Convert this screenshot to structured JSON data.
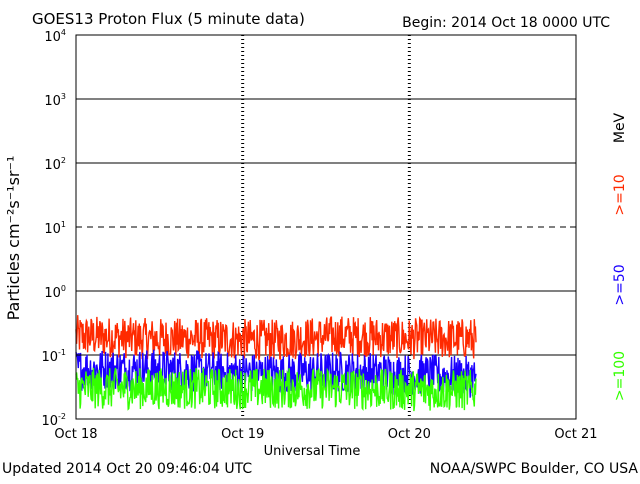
{
  "chart_data": {
    "type": "line",
    "title": "GOES13 Proton Flux (5 minute data)",
    "begin_label": "Begin: 2014 Oct 18 0000 UTC",
    "xlabel": "Universal Time",
    "ylabel": "Particles cm⁻²s⁻¹sr⁻¹",
    "y_scale": "log",
    "ylim": [
      0.01,
      10000
    ],
    "y_ticks": [
      {
        "value": 0.01,
        "base": "10",
        "exp": "-2"
      },
      {
        "value": 0.1,
        "base": "10",
        "exp": "-1"
      },
      {
        "value": 1,
        "base": "10",
        "exp": "0"
      },
      {
        "value": 10,
        "base": "10",
        "exp": "1"
      },
      {
        "value": 100,
        "base": "10",
        "exp": "2"
      },
      {
        "value": 1000,
        "base": "10",
        "exp": "3"
      },
      {
        "value": 10000,
        "base": "10",
        "exp": "4"
      }
    ],
    "x_ticks": [
      "Oct 18",
      "Oct 19",
      "Oct 20",
      "Oct 21"
    ],
    "xlim_days": [
      0,
      3
    ],
    "data_end_day": 2.4,
    "grid": "horizontal at each decade; 10 pfu threshold dashed",
    "threshold_value": 10,
    "units_label": "MeV",
    "series": [
      {
        "name": ">=10",
        "color": "#ff2a00",
        "center": 0.2,
        "x": [
          0,
          0.4,
          0.8,
          1.2,
          1.6,
          2.0,
          2.4
        ],
        "values": [
          0.2,
          0.18,
          0.18,
          0.17,
          0.2,
          0.18,
          0.18
        ]
      },
      {
        "name": ">=50",
        "color": "#1a00ff",
        "center": 0.06,
        "x": [
          0,
          0.4,
          0.8,
          1.2,
          1.6,
          2.0,
          2.4
        ],
        "values": [
          0.06,
          0.06,
          0.055,
          0.05,
          0.055,
          0.05,
          0.045
        ]
      },
      {
        "name": ">=100",
        "color": "#33ff00",
        "center": 0.03,
        "x": [
          0,
          0.4,
          0.8,
          1.2,
          1.6,
          2.0,
          2.4
        ],
        "values": [
          0.03,
          0.03,
          0.03,
          0.03,
          0.03,
          0.028,
          0.028
        ]
      }
    ]
  },
  "footer": {
    "updated": "Updated 2014 Oct 20 09:46:04 UTC",
    "credit": "NOAA/SWPC Boulder, CO USA"
  }
}
